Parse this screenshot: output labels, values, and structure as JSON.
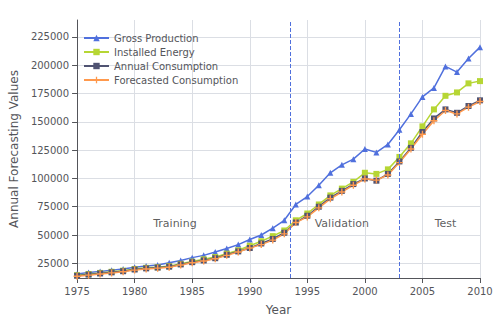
{
  "chart_data": {
    "type": "line",
    "xlabel": "Year",
    "ylabel": "Annual Forecasting Values",
    "x": [
      1975,
      1976,
      1977,
      1978,
      1979,
      1980,
      1981,
      1982,
      1983,
      1984,
      1985,
      1986,
      1987,
      1988,
      1989,
      1990,
      1991,
      1992,
      1993,
      1994,
      1995,
      1996,
      1997,
      1998,
      1999,
      2000,
      2001,
      2002,
      2003,
      2004,
      2005,
      2006,
      2007,
      2008,
      2009,
      2010
    ],
    "series": [
      {
        "name": "Gross Production",
        "marker": "triangle",
        "values": [
          15500,
          16800,
          17800,
          18800,
          20000,
          21500,
          22500,
          23500,
          25500,
          27500,
          30000,
          32000,
          35000,
          38000,
          41500,
          46000,
          50000,
          56000,
          63000,
          77000,
          84000,
          94000,
          105000,
          112000,
          117000,
          126000,
          123000,
          130000,
          143000,
          157000,
          172000,
          180000,
          199000,
          194000,
          206000,
          216000
        ]
      },
      {
        "name": "Installed Energy",
        "marker": "square",
        "values": [
          14500,
          15500,
          16500,
          17500,
          18500,
          20000,
          21000,
          21500,
          22500,
          24500,
          26500,
          28500,
          30500,
          33500,
          36500,
          40500,
          44500,
          49000,
          54000,
          63000,
          69000,
          77000,
          85000,
          91000,
          97000,
          105000,
          104000,
          108000,
          119000,
          131000,
          146000,
          161000,
          173000,
          176000,
          184000,
          186000
        ]
      },
      {
        "name": "Annual Consumption",
        "marker": "square",
        "values": [
          14000,
          15000,
          16000,
          17000,
          18000,
          19500,
          20500,
          21200,
          22000,
          24000,
          26000,
          27500,
          29500,
          32500,
          35500,
          38500,
          42500,
          46500,
          52000,
          61000,
          67000,
          75000,
          83000,
          89000,
          95000,
          100000,
          98000,
          104000,
          115000,
          127000,
          141000,
          153000,
          161000,
          158000,
          164000,
          169000
        ]
      },
      {
        "name": "Forecasted Consumption",
        "marker": "plus",
        "values": [
          13500,
          14500,
          15500,
          16500,
          17500,
          19000,
          20000,
          20700,
          21500,
          23500,
          25500,
          27000,
          29000,
          32000,
          35000,
          38500,
          41500,
          45500,
          51000,
          61000,
          66000,
          74000,
          82000,
          88000,
          94000,
          99500,
          98500,
          103000,
          114000,
          126000,
          139000,
          151000,
          160000,
          157000,
          163000,
          168000
        ]
      }
    ],
    "vlines": [
      1993.5,
      2003.0
    ],
    "annotations": [
      {
        "text": "Training",
        "x": 1983.5,
        "y": 60000
      },
      {
        "text": "Validation",
        "x": 1998.0,
        "y": 60000
      },
      {
        "text": "Test",
        "x": 2007.0,
        "y": 60000
      }
    ],
    "xlim": [
      1975,
      2010
    ],
    "xticks": [
      1975,
      1980,
      1985,
      1990,
      1995,
      2000,
      2005,
      2010
    ],
    "ylim": [
      12000,
      240000
    ],
    "yticks": [
      25000,
      50000,
      75000,
      100000,
      125000,
      150000,
      175000,
      200000,
      225000
    ],
    "grid": true,
    "legend": "upper left"
  }
}
